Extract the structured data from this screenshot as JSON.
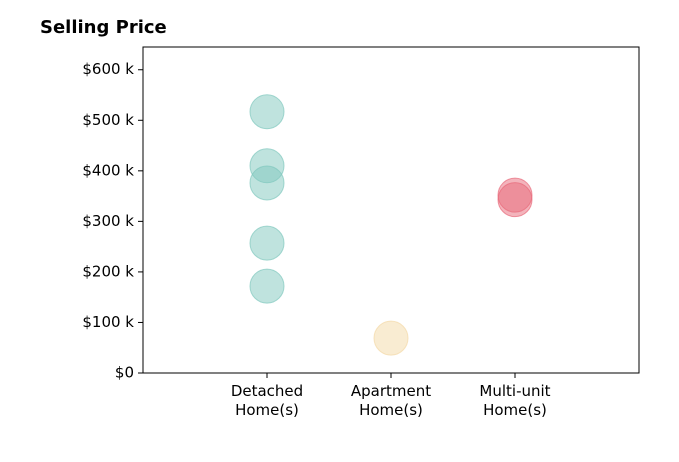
{
  "chart_data": {
    "type": "strip",
    "title": "Selling Price",
    "categories": [
      "Detached\nHome(s)",
      "Apartment\nHome(s)",
      "Multi-unit\nHome(s)"
    ],
    "values": [
      [
        517,
        410,
        376,
        257,
        172
      ],
      [
        69
      ],
      [
        352,
        343
      ]
    ],
    "colors": [
      "#7fc8bd",
      "#f3d9a6",
      "#e8697a"
    ],
    "xlim": [
      0,
      4
    ],
    "ylim": [
      0,
      645
    ],
    "yticks": [
      {
        "value": 0,
        "label": "$0"
      },
      {
        "value": 100,
        "label": "$100 k"
      },
      {
        "value": 200,
        "label": "$200 k"
      },
      {
        "value": 300,
        "label": "$300 k"
      },
      {
        "value": 400,
        "label": "$400 k"
      },
      {
        "value": 500,
        "label": "$500 k"
      },
      {
        "value": 600,
        "label": "$600 k"
      }
    ]
  }
}
